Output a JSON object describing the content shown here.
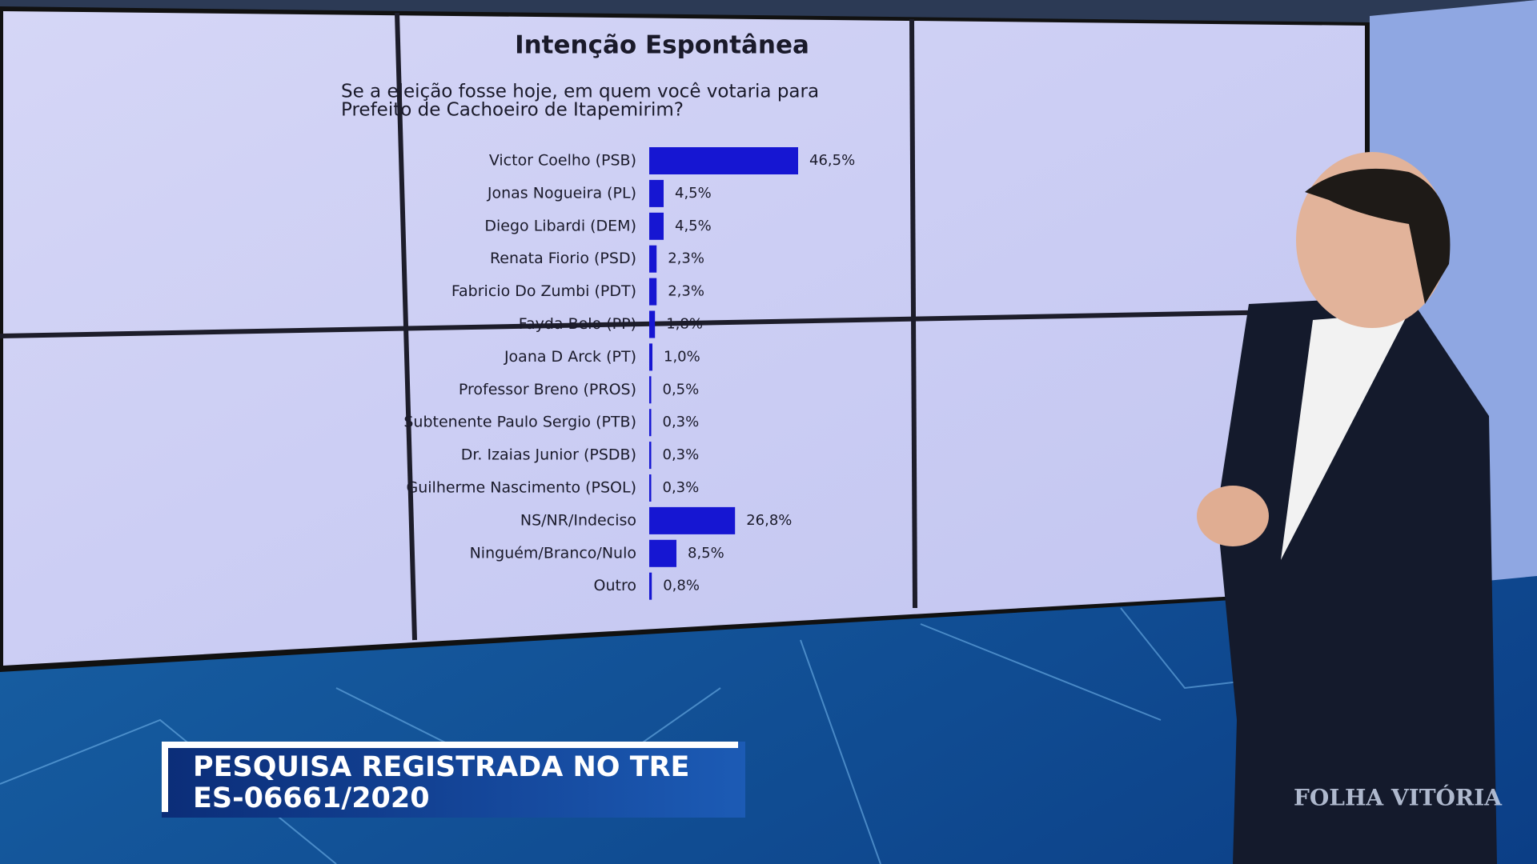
{
  "chart_data": {
    "type": "barh",
    "title": "Intenção Espontânea",
    "subtitle": [
      "Se a eleição fosse hoje, em quem você votaria para",
      "Prefeito de Cachoeiro de Itapemirim?"
    ],
    "categories": [
      "Victor Coelho (PSB)",
      "Jonas Nogueira (PL)",
      "Diego Libardi (DEM)",
      "Renata Fiorio (PSD)",
      "Fabricio Do Zumbi (PDT)",
      "Fayda Belo (PP)",
      "Joana D Arck (PT)",
      "Professor Breno (PROS)",
      "Subtenente Paulo Sergio (PTB)",
      "Dr. Izaias Junior (PSDB)",
      "Guilherme Nascimento (PSOL)",
      "NS/NR/Indeciso",
      "Ninguém/Branco/Nulo",
      "Outro"
    ],
    "values": [
      46.5,
      4.5,
      4.5,
      2.3,
      2.3,
      1.8,
      1.0,
      0.5,
      0.3,
      0.3,
      0.3,
      26.8,
      8.5,
      0.8
    ],
    "value_labels": [
      "46,5%",
      "4,5%",
      "4,5%",
      "2,3%",
      "2,3%",
      "1,8%",
      "1,0%",
      "0,5%",
      "0,3%",
      "0,3%",
      "0,3%",
      "26,8%",
      "8,5%",
      "0,8%"
    ],
    "color": "#1616d2"
  },
  "overlay": {
    "lines": [
      "PESQUISA REGISTRADA NO TRE",
      "ES-06661/2020"
    ],
    "logo": "FOLHA VITÓRIA"
  }
}
